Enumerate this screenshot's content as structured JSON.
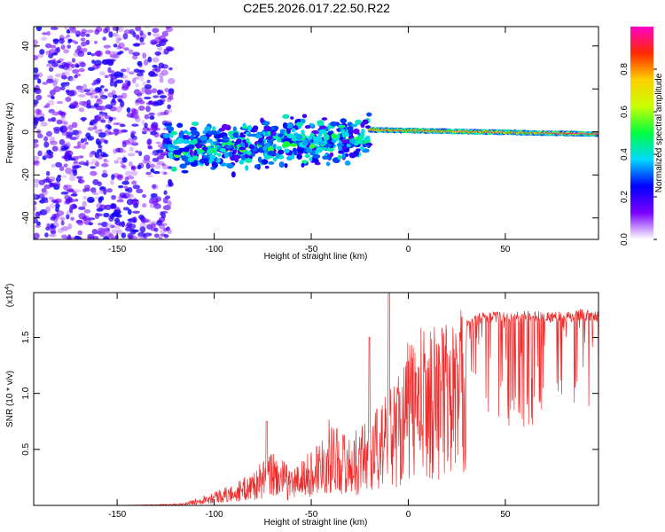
{
  "figure_title": "C2E5.2026.017.22.50.R22",
  "chart_data": [
    {
      "type": "heatmap",
      "title": "C2E5.2026.017.22.50.R22",
      "xlabel": "Height of straight line (km)",
      "ylabel": "Frequency (Hz)",
      "xlim": [
        -193,
        98
      ],
      "ylim": [
        -50,
        49
      ],
      "x_ticks": [
        -150,
        -100,
        -50,
        0,
        50
      ],
      "x_tick_labels": [
        "-150",
        "-100",
        "-50",
        "0",
        "50"
      ],
      "y_ticks": [
        -40,
        -20,
        0,
        20,
        40
      ],
      "y_tick_labels": [
        "-40",
        "-20",
        "0",
        "20",
        "40"
      ],
      "colorbar": {
        "label": "Normalized spectral amplitude",
        "range": [
          0,
          1
        ],
        "ticks": [
          0.0,
          0.2,
          0.4,
          0.6,
          0.8
        ],
        "tick_labels": [
          "0.0",
          "0.2",
          "0.4",
          "0.6",
          "0.8"
        ],
        "colormap": [
          "#ffffff",
          "#7a00ff",
          "#0000ff",
          "#00d8ff",
          "#00ff40",
          "#c8ff00",
          "#ffd000",
          "#ff2a00",
          "#ff00c8"
        ]
      },
      "regions": [
        {
          "name": "noise",
          "x": [
            -193,
            -122
          ],
          "freq_range": [
            -50,
            49
          ],
          "amplitude": [
            0.05,
            0.25
          ]
        },
        {
          "name": "scattered band",
          "x": [
            -125,
            -20
          ],
          "center_freq": [
            -8,
            -3
          ],
          "width_hz": 14,
          "amplitude": [
            0.15,
            0.45
          ]
        },
        {
          "name": "coherent line",
          "x": [
            -20,
            98
          ],
          "center_freq": [
            1,
            -1
          ],
          "width_hz": 4,
          "amplitude": [
            0.4,
            0.98
          ]
        }
      ]
    },
    {
      "type": "line",
      "xlabel": "Height of straight line (km)",
      "ylabel": "SNR (10 * v/v)",
      "multiplier_label": "(x10",
      "multiplier_exponent": "4",
      "multiplier_close": ")",
      "xlim": [
        -193,
        98
      ],
      "ylim": [
        0,
        1.9
      ],
      "x_ticks": [
        -150,
        -100,
        -50,
        0,
        50
      ],
      "x_tick_labels": [
        "-150",
        "-100",
        "-50",
        "0",
        "50"
      ],
      "y_ticks": [
        0.5,
        1.0,
        1.5
      ],
      "y_tick_labels": [
        "0.5",
        "1.0",
        "1.5"
      ],
      "color": "#ee2b2b",
      "envelope": {
        "x": [
          -193,
          -150,
          -125,
          -115,
          -100,
          -90,
          -80,
          -70,
          -60,
          -50,
          -40,
          -30,
          -20,
          -10,
          0,
          10,
          20,
          30,
          40,
          50,
          60,
          70,
          80,
          90,
          98
        ],
        "y": [
          0.0,
          0.0,
          0.01,
          0.02,
          0.12,
          0.17,
          0.28,
          0.45,
          0.3,
          0.45,
          0.72,
          0.55,
          0.75,
          0.93,
          1.35,
          1.5,
          1.52,
          1.65,
          1.7,
          1.7,
          1.71,
          1.7,
          1.7,
          1.72,
          1.7
        ]
      },
      "peaks": [
        {
          "x": -10,
          "y": 1.9
        },
        {
          "x": -20,
          "y": 1.5
        },
        {
          "x": -73,
          "y": 0.75
        }
      ]
    }
  ]
}
